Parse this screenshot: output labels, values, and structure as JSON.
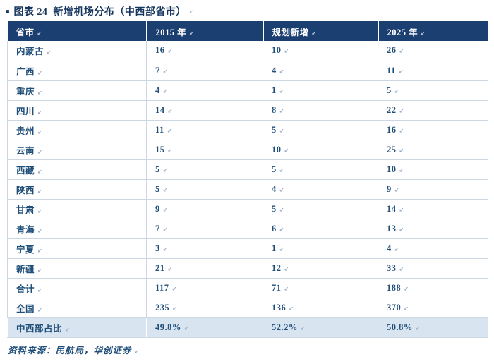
{
  "title": {
    "text": "图表 24  新增机场分布（中西部省市）"
  },
  "icons": {
    "title_bullet": "■",
    "return_mark": "↙"
  },
  "table": {
    "headers": [
      "省市",
      "2015 年",
      "规划新增",
      "2025 年"
    ],
    "rows": [
      {
        "cells": [
          "内蒙古",
          "16",
          "10",
          "26"
        ]
      },
      {
        "cells": [
          "广西",
          "7",
          "4",
          "11"
        ]
      },
      {
        "cells": [
          "重庆",
          "4",
          "1",
          "5"
        ]
      },
      {
        "cells": [
          "四川",
          "14",
          "8",
          "22"
        ]
      },
      {
        "cells": [
          "贵州",
          "11",
          "5",
          "16"
        ]
      },
      {
        "cells": [
          "云南",
          "15",
          "10",
          "25"
        ]
      },
      {
        "cells": [
          "西藏",
          "5",
          "5",
          "10"
        ]
      },
      {
        "cells": [
          "陕西",
          "5",
          "4",
          "9"
        ]
      },
      {
        "cells": [
          "甘肃",
          "9",
          "5",
          "14"
        ]
      },
      {
        "cells": [
          "青海",
          "7",
          "6",
          "13"
        ]
      },
      {
        "cells": [
          "宁夏",
          "3",
          "1",
          "4"
        ]
      },
      {
        "cells": [
          "新疆",
          "21",
          "12",
          "33"
        ]
      },
      {
        "cells": [
          "合计",
          "117",
          "71",
          "188"
        ]
      },
      {
        "cells": [
          "全国",
          "235",
          "136",
          "370"
        ]
      },
      {
        "cells": [
          "中西部占比",
          "49.8%",
          "52.2%",
          "50.8%"
        ],
        "highlight": true
      }
    ]
  },
  "footer": {
    "source": "资料来源：民航局，华创证券"
  },
  "colors": {
    "header_bg": "#1c3f72",
    "body_text": "#1f4e79",
    "highlight_bg": "#d9e4f1",
    "grid_line": "#ccd7e4",
    "title_text": "#17365d"
  }
}
